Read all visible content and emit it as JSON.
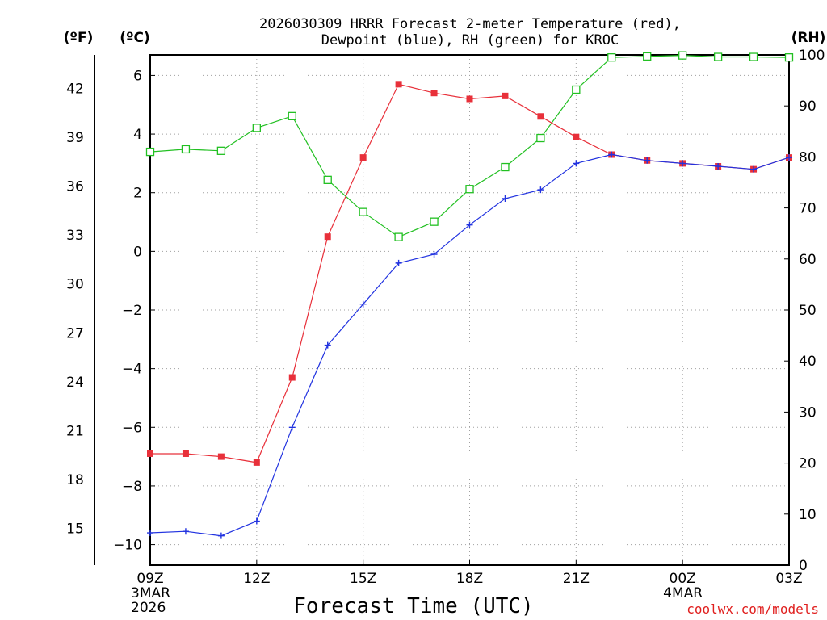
{
  "chart_data": {
    "type": "line",
    "title_line1": "2026030309 HRRR Forecast 2-meter Temperature (red),",
    "title_line2": "Dewpoint (blue), RH (green) for KROC",
    "xlabel": "Forecast Time (UTC)",
    "credit": "coolwx.com/models",
    "units": {
      "fahrenheit": "(ºF)",
      "celsius": "(ºC)",
      "rh": "(RH)"
    },
    "x_hours": [
      0,
      1,
      2,
      3,
      4,
      5,
      6,
      7,
      8,
      9,
      10,
      11,
      12,
      13,
      14,
      15,
      16,
      17,
      18
    ],
    "xlim": [
      0,
      18
    ],
    "x_ticks": [
      {
        "hour": 0,
        "label": "09Z",
        "date": "3MAR",
        "year": "2026"
      },
      {
        "hour": 3,
        "label": "12Z"
      },
      {
        "hour": 6,
        "label": "15Z"
      },
      {
        "hour": 9,
        "label": "18Z"
      },
      {
        "hour": 12,
        "label": "21Z"
      },
      {
        "hour": 15,
        "label": "00Z",
        "date": "4MAR"
      },
      {
        "hour": 18,
        "label": "03Z"
      }
    ],
    "ylim_c": [
      -10.7,
      6.7
    ],
    "y_ticks_c": [
      "6",
      "4",
      "2",
      "0",
      "−2",
      "−4",
      "−6",
      "−8",
      "−10"
    ],
    "y_ticks_f": [
      "42",
      "39",
      "36",
      "33",
      "30",
      "27",
      "24",
      "21",
      "18",
      "15"
    ],
    "ylim_rh": [
      0,
      100
    ],
    "y_ticks_rh": [
      "100",
      "90",
      "80",
      "70",
      "60",
      "50",
      "40",
      "30",
      "20",
      "10",
      "0"
    ],
    "series": [
      {
        "name": "Temperature",
        "unit": "C",
        "color": "#e8303a",
        "marker": "filled-square",
        "values": [
          -6.9,
          -6.9,
          -7.0,
          -7.2,
          -4.3,
          0.5,
          3.2,
          5.7,
          5.4,
          5.2,
          5.3,
          4.6,
          3.9,
          3.3,
          3.1,
          3.0,
          2.9,
          2.8,
          3.2
        ]
      },
      {
        "name": "Dewpoint",
        "unit": "C",
        "color": "#2233e0",
        "marker": "plus",
        "values": [
          -9.6,
          -9.55,
          -9.7,
          -9.2,
          -6.0,
          -3.2,
          -1.8,
          -0.4,
          -0.1,
          0.9,
          1.8,
          2.1,
          3.0,
          3.3,
          3.1,
          3.0,
          2.9,
          2.8,
          3.2
        ]
      },
      {
        "name": "RH",
        "unit": "%",
        "color": "#22c022",
        "marker": "open-square",
        "values": [
          81,
          81.5,
          81.2,
          85.7,
          88,
          75.5,
          69.2,
          64.3,
          67.3,
          73.7,
          78,
          83.7,
          93.2,
          99.5,
          99.7,
          99.9,
          99.6,
          99.6,
          99.5
        ]
      }
    ]
  }
}
